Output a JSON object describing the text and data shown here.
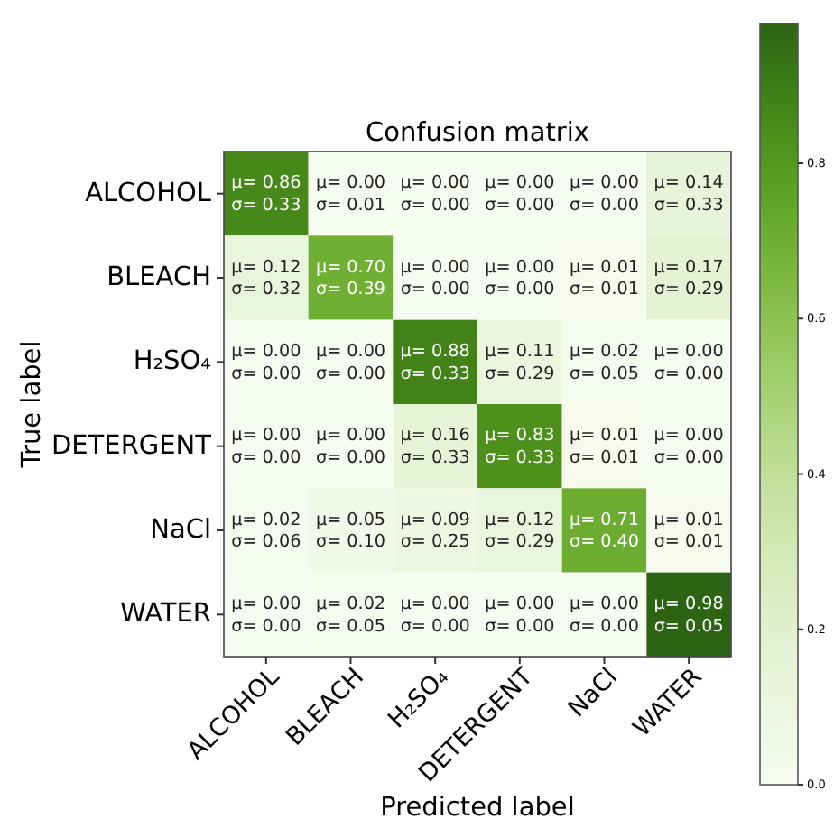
{
  "chart_data": {
    "type": "heatmap",
    "title": "Confusion matrix",
    "xlabel": "Predicted label",
    "ylabel": "True label",
    "categories": [
      "ALCOHOL",
      "BLEACH",
      "H₂SO₄",
      "DETERGENT",
      "NaCl",
      "WATER"
    ],
    "y_categories": [
      "ALCOHOL",
      "BLEACH",
      "H₂SO₄",
      "DETERGENT",
      "NaCl",
      "WATER"
    ],
    "cells": [
      [
        0.86,
        0.0,
        0.0,
        0.0,
        0.0,
        0.14
      ],
      [
        0.12,
        0.7,
        0.0,
        0.0,
        0.01,
        0.17
      ],
      [
        0.0,
        0.0,
        0.88,
        0.11,
        0.02,
        0.0
      ],
      [
        0.0,
        0.0,
        0.16,
        0.83,
        0.01,
        0.0
      ],
      [
        0.02,
        0.05,
        0.09,
        0.12,
        0.71,
        0.01
      ],
      [
        0.0,
        0.02,
        0.0,
        0.0,
        0.0,
        0.98
      ]
    ],
    "cell_labels": [
      [
        "μ= 0.86\nσ= 0.33",
        "μ= 0.00\nσ= 0.01",
        "μ= 0.00\nσ= 0.00",
        "μ= 0.00\nσ= 0.00",
        "μ= 0.00\nσ= 0.00",
        "μ= 0.14\nσ= 0.33"
      ],
      [
        "μ= 0.12\nσ= 0.32",
        "μ= 0.70\nσ= 0.39",
        "μ= 0.00\nσ= 0.00",
        "μ= 0.00\nσ= 0.00",
        "μ= 0.01\nσ= 0.01",
        "μ= 0.17\nσ= 0.29"
      ],
      [
        "μ= 0.00\nσ= 0.00",
        "μ= 0.00\nσ= 0.00",
        "μ= 0.88\nσ= 0.33",
        "μ= 0.11\nσ= 0.29",
        "μ= 0.02\nσ= 0.05",
        "μ= 0.00\nσ= 0.00"
      ],
      [
        "μ= 0.00\nσ= 0.00",
        "μ= 0.00\nσ= 0.00",
        "μ= 0.16\nσ= 0.33",
        "μ= 0.83\nσ= 0.33",
        "μ= 0.01\nσ= 0.01",
        "μ= 0.00\nσ= 0.00"
      ],
      [
        "μ= 0.02\nσ= 0.06",
        "μ= 0.05\nσ= 0.10",
        "μ= 0.09\nσ= 0.25",
        "μ= 0.12\nσ= 0.29",
        "μ= 0.71\nσ= 0.40",
        "μ= 0.01\nσ= 0.01"
      ],
      [
        "μ= 0.00\nσ= 0.00",
        "μ= 0.02\nσ= 0.05",
        "μ= 0.00\nσ= 0.00",
        "μ= 0.00\nσ= 0.00",
        "μ= 0.00\nσ= 0.00",
        "μ= 0.98\nσ= 0.05"
      ]
    ],
    "clim": [
      0,
      0.98
    ],
    "cticks": [
      {
        "value": 0,
        "label": "0.0"
      },
      {
        "value": 0.2,
        "label": "0.2"
      },
      {
        "value": 0.4,
        "label": "0.4"
      },
      {
        "value": 0.6,
        "label": "0.6"
      },
      {
        "value": 0.8,
        "label": "0.8"
      }
    ]
  }
}
